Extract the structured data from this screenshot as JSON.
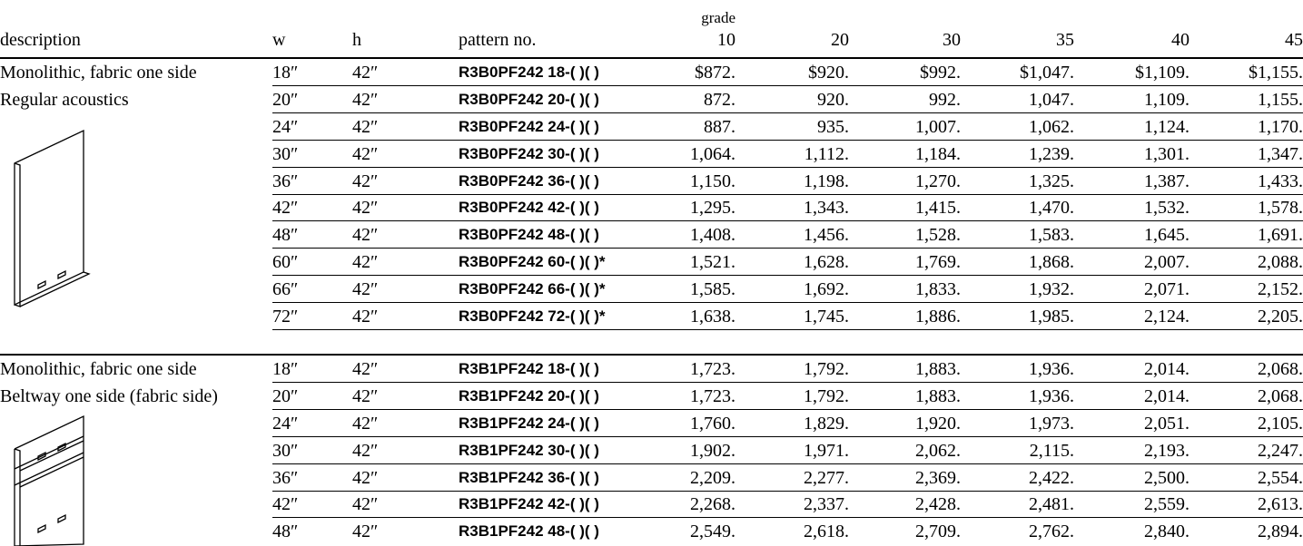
{
  "header": {
    "grade": "grade",
    "columns": [
      "description",
      "w",
      "h",
      "pattern no.",
      "10",
      "20",
      "30",
      "35",
      "40",
      "45"
    ]
  },
  "sections": [
    {
      "description": [
        "Monolithic, fabric one side",
        "Regular acoustics"
      ],
      "rows": [
        [
          "18″",
          "42″",
          "R3B0PF242 18-( )( )",
          "$872.",
          "$920.",
          "$992.",
          "$1,047.",
          "$1,109.",
          "$1,155."
        ],
        [
          "20″",
          "42″",
          "R3B0PF242 20-( )( )",
          "872.",
          "920.",
          "992.",
          "1,047.",
          "1,109.",
          "1,155."
        ],
        [
          "24″",
          "42″",
          "R3B0PF242 24-( )( )",
          "887.",
          "935.",
          "1,007.",
          "1,062.",
          "1,124.",
          "1,170."
        ],
        [
          "30″",
          "42″",
          "R3B0PF242 30-( )( )",
          "1,064.",
          "1,112.",
          "1,184.",
          "1,239.",
          "1,301.",
          "1,347."
        ],
        [
          "36″",
          "42″",
          "R3B0PF242 36-( )( )",
          "1,150.",
          "1,198.",
          "1,270.",
          "1,325.",
          "1,387.",
          "1,433."
        ],
        [
          "42″",
          "42″",
          "R3B0PF242 42-( )( )",
          "1,295.",
          "1,343.",
          "1,415.",
          "1,470.",
          "1,532.",
          "1,578."
        ],
        [
          "48″",
          "42″",
          "R3B0PF242 48-( )( )",
          "1,408.",
          "1,456.",
          "1,528.",
          "1,583.",
          "1,645.",
          "1,691."
        ],
        [
          "60″",
          "42″",
          "R3B0PF242 60-( )( )*",
          "1,521.",
          "1,628.",
          "1,769.",
          "1,868.",
          "2,007.",
          "2,088."
        ],
        [
          "66″",
          "42″",
          "R3B0PF242 66-( )( )*",
          "1,585.",
          "1,692.",
          "1,833.",
          "1,932.",
          "2,071.",
          "2,152."
        ],
        [
          "72″",
          "42″",
          "R3B0PF242 72-( )( )*",
          "1,638.",
          "1,745.",
          "1,886.",
          "1,985.",
          "2,124.",
          "2,205."
        ]
      ]
    },
    {
      "description": [
        "Monolithic, fabric one side",
        "Beltway one side (fabric side)"
      ],
      "rows": [
        [
          "18″",
          "42″",
          "R3B1PF242 18-( )( )",
          "1,723.",
          "1,792.",
          "1,883.",
          "1,936.",
          "2,014.",
          "2,068."
        ],
        [
          "20″",
          "42″",
          "R3B1PF242 20-( )( )",
          "1,723.",
          "1,792.",
          "1,883.",
          "1,936.",
          "2,014.",
          "2,068."
        ],
        [
          "24″",
          "42″",
          "R3B1PF242 24-( )( )",
          "1,760.",
          "1,829.",
          "1,920.",
          "1,973.",
          "2,051.",
          "2,105."
        ],
        [
          "30″",
          "42″",
          "R3B1PF242 30-( )( )",
          "1,902.",
          "1,971.",
          "2,062.",
          "2,115.",
          "2,193.",
          "2,247."
        ],
        [
          "36″",
          "42″",
          "R3B1PF242 36-( )( )",
          "2,209.",
          "2,277.",
          "2,369.",
          "2,422.",
          "2,500.",
          "2,554."
        ],
        [
          "42″",
          "42″",
          "R3B1PF242 42-( )( )",
          "2,268.",
          "2,337.",
          "2,428.",
          "2,481.",
          "2,559.",
          "2,613."
        ],
        [
          "48″",
          "42″",
          "R3B1PF242 48-( )( )",
          "2,549.",
          "2,618.",
          "2,709.",
          "2,762.",
          "2,840.",
          "2,894."
        ]
      ]
    }
  ]
}
